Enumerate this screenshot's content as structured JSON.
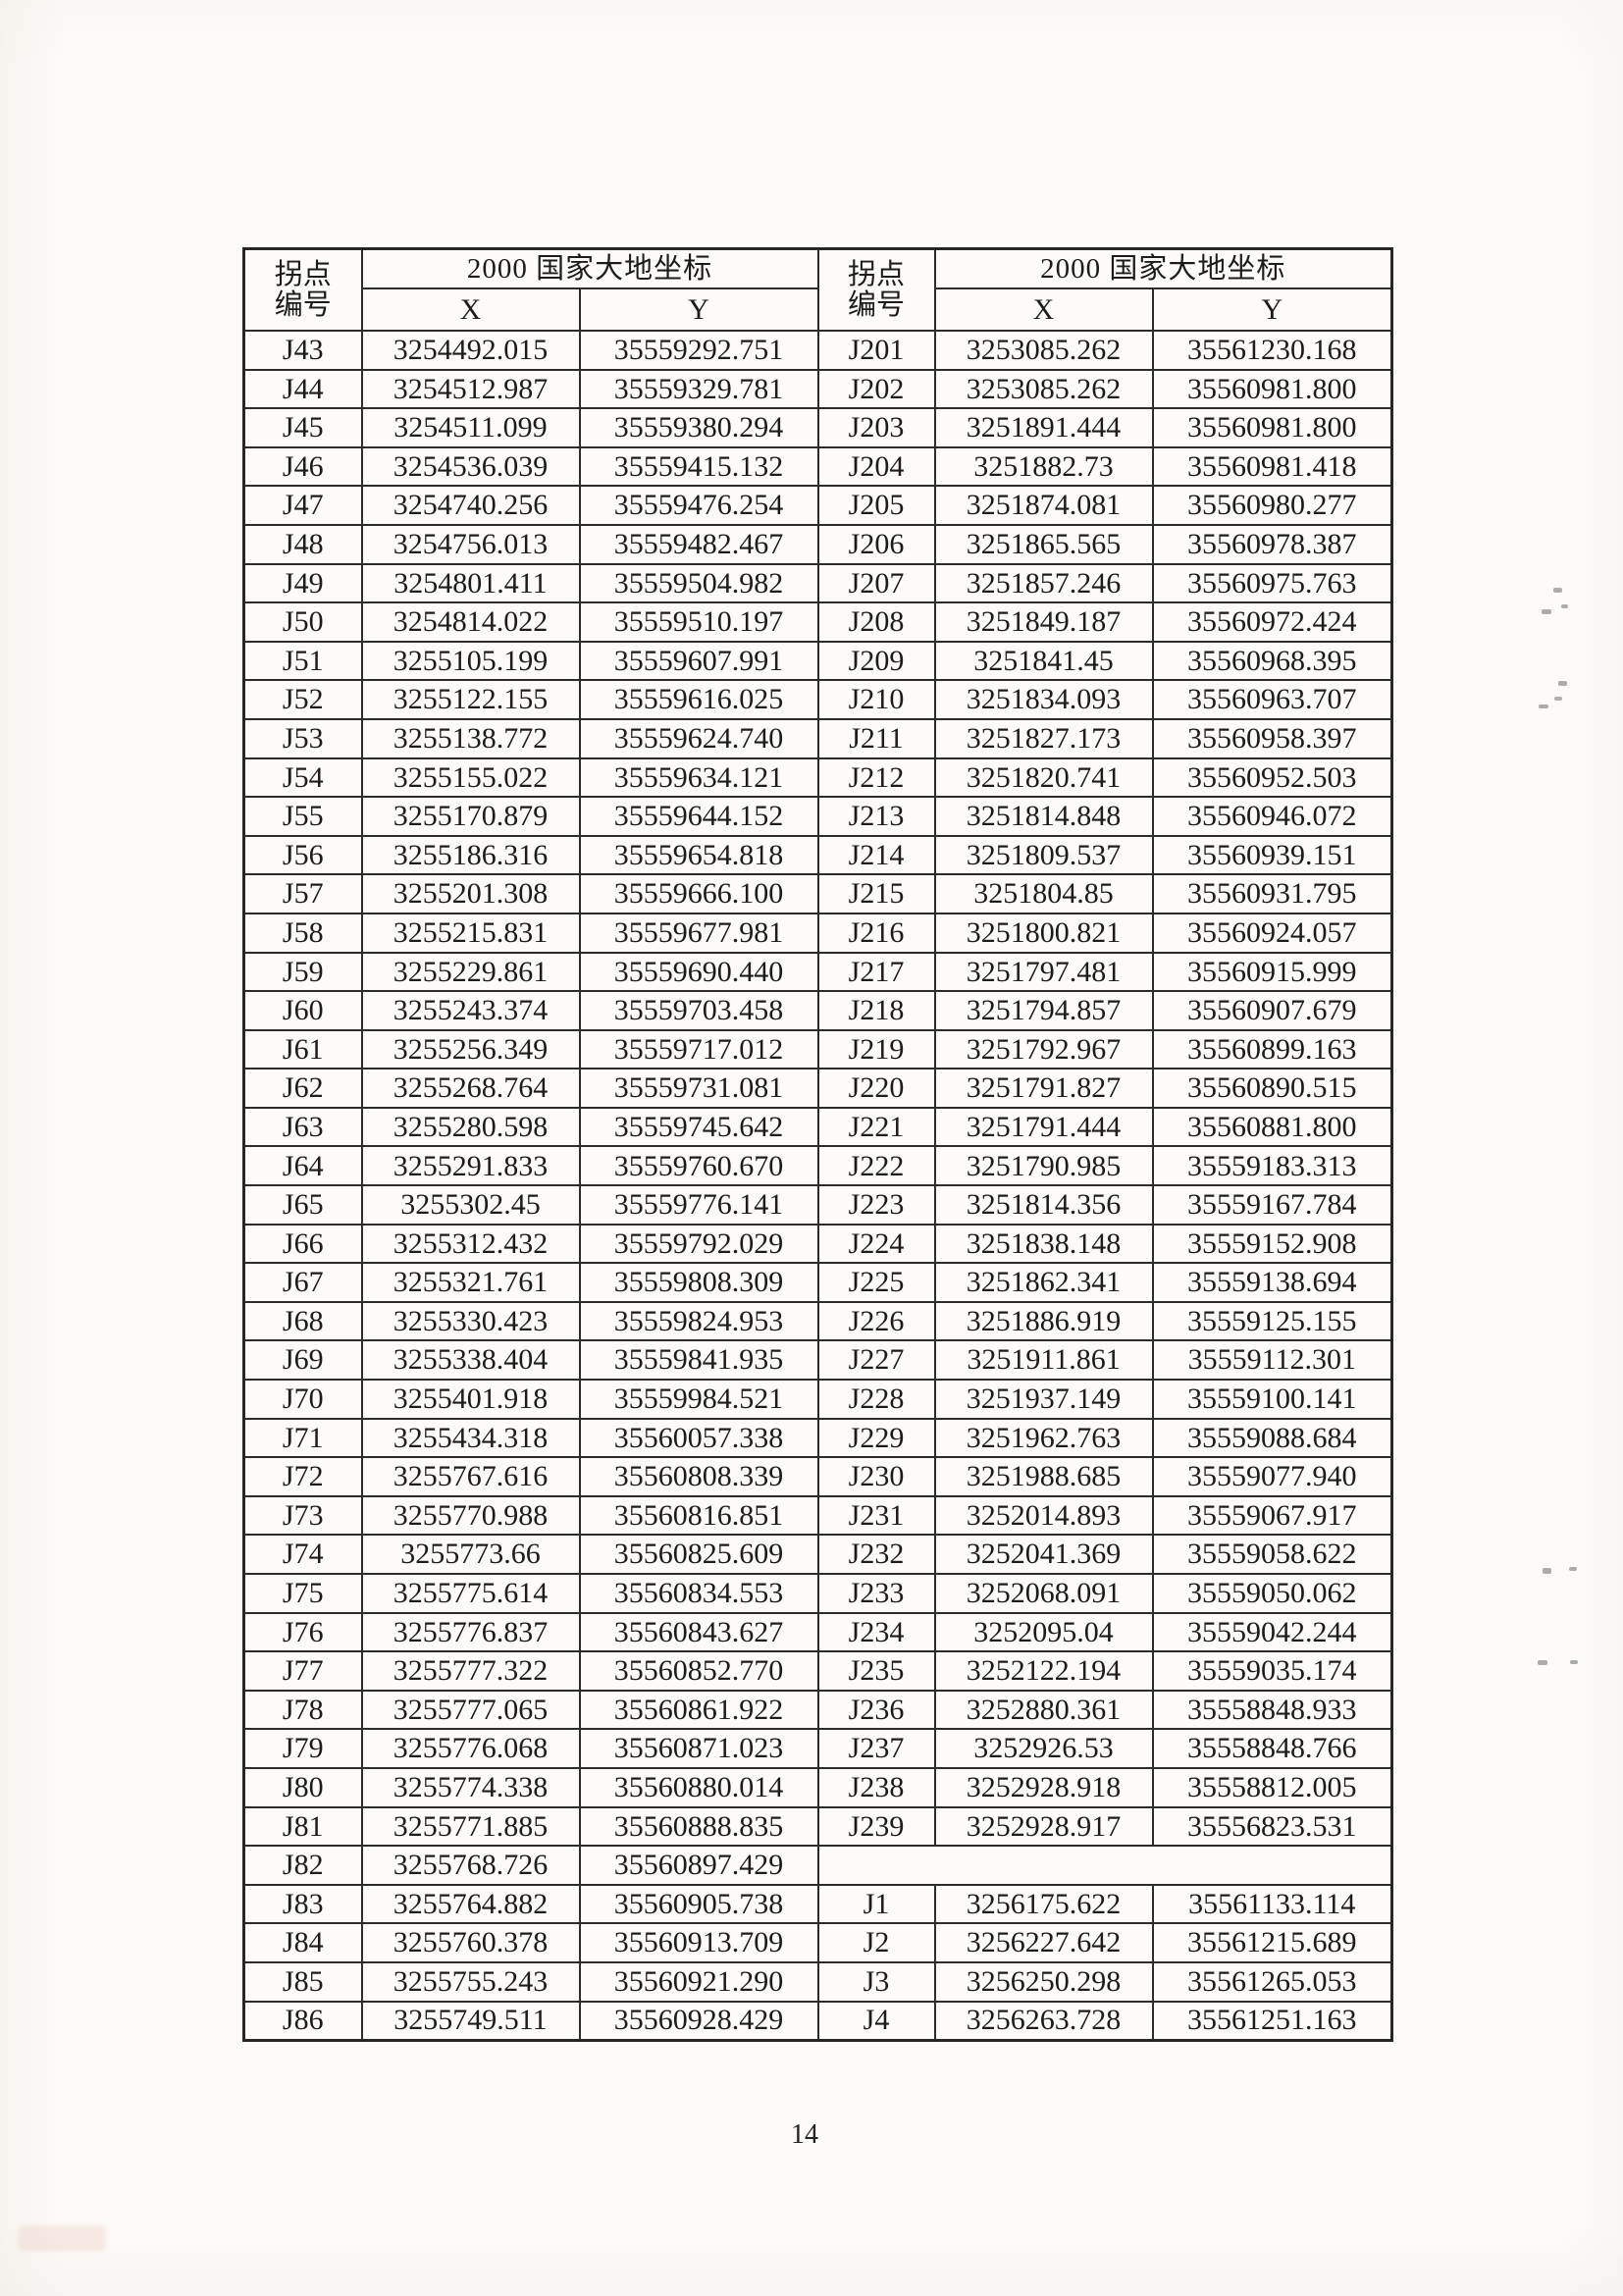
{
  "page": {
    "page_number": "14",
    "colors": {
      "paper": "#fcfbf8",
      "ink": "#1c1c1c",
      "border": "#2b2b2b"
    }
  },
  "table": {
    "header": {
      "point_label_top": "拐点",
      "point_label_bottom": "编号",
      "coord_system_title": "2000 国家大地坐标",
      "x_label": "X",
      "y_label": "Y"
    },
    "left_rows": [
      {
        "id": "J43",
        "x": "3254492.015",
        "y": "35559292.751"
      },
      {
        "id": "J44",
        "x": "3254512.987",
        "y": "35559329.781"
      },
      {
        "id": "J45",
        "x": "3254511.099",
        "y": "35559380.294"
      },
      {
        "id": "J46",
        "x": "3254536.039",
        "y": "35559415.132"
      },
      {
        "id": "J47",
        "x": "3254740.256",
        "y": "35559476.254"
      },
      {
        "id": "J48",
        "x": "3254756.013",
        "y": "35559482.467"
      },
      {
        "id": "J49",
        "x": "3254801.411",
        "y": "35559504.982"
      },
      {
        "id": "J50",
        "x": "3254814.022",
        "y": "35559510.197"
      },
      {
        "id": "J51",
        "x": "3255105.199",
        "y": "35559607.991"
      },
      {
        "id": "J52",
        "x": "3255122.155",
        "y": "35559616.025"
      },
      {
        "id": "J53",
        "x": "3255138.772",
        "y": "35559624.740"
      },
      {
        "id": "J54",
        "x": "3255155.022",
        "y": "35559634.121"
      },
      {
        "id": "J55",
        "x": "3255170.879",
        "y": "35559644.152"
      },
      {
        "id": "J56",
        "x": "3255186.316",
        "y": "35559654.818"
      },
      {
        "id": "J57",
        "x": "3255201.308",
        "y": "35559666.100"
      },
      {
        "id": "J58",
        "x": "3255215.831",
        "y": "35559677.981"
      },
      {
        "id": "J59",
        "x": "3255229.861",
        "y": "35559690.440"
      },
      {
        "id": "J60",
        "x": "3255243.374",
        "y": "35559703.458"
      },
      {
        "id": "J61",
        "x": "3255256.349",
        "y": "35559717.012"
      },
      {
        "id": "J62",
        "x": "3255268.764",
        "y": "35559731.081"
      },
      {
        "id": "J63",
        "x": "3255280.598",
        "y": "35559745.642"
      },
      {
        "id": "J64",
        "x": "3255291.833",
        "y": "35559760.670"
      },
      {
        "id": "J65",
        "x": "3255302.45",
        "y": "35559776.141"
      },
      {
        "id": "J66",
        "x": "3255312.432",
        "y": "35559792.029"
      },
      {
        "id": "J67",
        "x": "3255321.761",
        "y": "35559808.309"
      },
      {
        "id": "J68",
        "x": "3255330.423",
        "y": "35559824.953"
      },
      {
        "id": "J69",
        "x": "3255338.404",
        "y": "35559841.935"
      },
      {
        "id": "J70",
        "x": "3255401.918",
        "y": "35559984.521"
      },
      {
        "id": "J71",
        "x": "3255434.318",
        "y": "35560057.338"
      },
      {
        "id": "J72",
        "x": "3255767.616",
        "y": "35560808.339"
      },
      {
        "id": "J73",
        "x": "3255770.988",
        "y": "35560816.851"
      },
      {
        "id": "J74",
        "x": "3255773.66",
        "y": "35560825.609"
      },
      {
        "id": "J75",
        "x": "3255775.614",
        "y": "35560834.553"
      },
      {
        "id": "J76",
        "x": "3255776.837",
        "y": "35560843.627"
      },
      {
        "id": "J77",
        "x": "3255777.322",
        "y": "35560852.770"
      },
      {
        "id": "J78",
        "x": "3255777.065",
        "y": "35560861.922"
      },
      {
        "id": "J79",
        "x": "3255776.068",
        "y": "35560871.023"
      },
      {
        "id": "J80",
        "x": "3255774.338",
        "y": "35560880.014"
      },
      {
        "id": "J81",
        "x": "3255771.885",
        "y": "35560888.835"
      },
      {
        "id": "J82",
        "x": "3255768.726",
        "y": "35560897.429"
      },
      {
        "id": "J83",
        "x": "3255764.882",
        "y": "35560905.738"
      },
      {
        "id": "J84",
        "x": "3255760.378",
        "y": "35560913.709"
      },
      {
        "id": "J85",
        "x": "3255755.243",
        "y": "35560921.290"
      },
      {
        "id": "J86",
        "x": "3255749.511",
        "y": "35560928.429"
      }
    ],
    "right_rows": [
      {
        "id": "J201",
        "x": "3253085.262",
        "y": "35561230.168"
      },
      {
        "id": "J202",
        "x": "3253085.262",
        "y": "35560981.800"
      },
      {
        "id": "J203",
        "x": "3251891.444",
        "y": "35560981.800"
      },
      {
        "id": "J204",
        "x": "3251882.73",
        "y": "35560981.418"
      },
      {
        "id": "J205",
        "x": "3251874.081",
        "y": "35560980.277"
      },
      {
        "id": "J206",
        "x": "3251865.565",
        "y": "35560978.387"
      },
      {
        "id": "J207",
        "x": "3251857.246",
        "y": "35560975.763"
      },
      {
        "id": "J208",
        "x": "3251849.187",
        "y": "35560972.424"
      },
      {
        "id": "J209",
        "x": "3251841.45",
        "y": "35560968.395"
      },
      {
        "id": "J210",
        "x": "3251834.093",
        "y": "35560963.707"
      },
      {
        "id": "J211",
        "x": "3251827.173",
        "y": "35560958.397"
      },
      {
        "id": "J212",
        "x": "3251820.741",
        "y": "35560952.503"
      },
      {
        "id": "J213",
        "x": "3251814.848",
        "y": "35560946.072"
      },
      {
        "id": "J214",
        "x": "3251809.537",
        "y": "35560939.151"
      },
      {
        "id": "J215",
        "x": "3251804.85",
        "y": "35560931.795"
      },
      {
        "id": "J216",
        "x": "3251800.821",
        "y": "35560924.057"
      },
      {
        "id": "J217",
        "x": "3251797.481",
        "y": "35560915.999"
      },
      {
        "id": "J218",
        "x": "3251794.857",
        "y": "35560907.679"
      },
      {
        "id": "J219",
        "x": "3251792.967",
        "y": "35560899.163"
      },
      {
        "id": "J220",
        "x": "3251791.827",
        "y": "35560890.515"
      },
      {
        "id": "J221",
        "x": "3251791.444",
        "y": "35560881.800"
      },
      {
        "id": "J222",
        "x": "3251790.985",
        "y": "35559183.313"
      },
      {
        "id": "J223",
        "x": "3251814.356",
        "y": "35559167.784"
      },
      {
        "id": "J224",
        "x": "3251838.148",
        "y": "35559152.908"
      },
      {
        "id": "J225",
        "x": "3251862.341",
        "y": "35559138.694"
      },
      {
        "id": "J226",
        "x": "3251886.919",
        "y": "35559125.155"
      },
      {
        "id": "J227",
        "x": "3251911.861",
        "y": "35559112.301"
      },
      {
        "id": "J228",
        "x": "3251937.149",
        "y": "35559100.141"
      },
      {
        "id": "J229",
        "x": "3251962.763",
        "y": "35559088.684"
      },
      {
        "id": "J230",
        "x": "3251988.685",
        "y": "35559077.940"
      },
      {
        "id": "J231",
        "x": "3252014.893",
        "y": "35559067.917"
      },
      {
        "id": "J232",
        "x": "3252041.369",
        "y": "35559058.622"
      },
      {
        "id": "J233",
        "x": "3252068.091",
        "y": "35559050.062"
      },
      {
        "id": "J234",
        "x": "3252095.04",
        "y": "35559042.244"
      },
      {
        "id": "J235",
        "x": "3252122.194",
        "y": "35559035.174"
      },
      {
        "id": "J236",
        "x": "3252880.361",
        "y": "35558848.933"
      },
      {
        "id": "J237",
        "x": "3252926.53",
        "y": "35558848.766"
      },
      {
        "id": "J238",
        "x": "3252928.918",
        "y": "35558812.005"
      },
      {
        "id": "J239",
        "x": "3252928.917",
        "y": "35556823.531"
      },
      null,
      {
        "id": "J1",
        "x": "3256175.622",
        "y": "35561133.114"
      },
      {
        "id": "J2",
        "x": "3256227.642",
        "y": "35561215.689"
      },
      {
        "id": "J3",
        "x": "3256250.298",
        "y": "35561265.053"
      },
      {
        "id": "J4",
        "x": "3256263.728",
        "y": "35561251.163"
      }
    ]
  }
}
